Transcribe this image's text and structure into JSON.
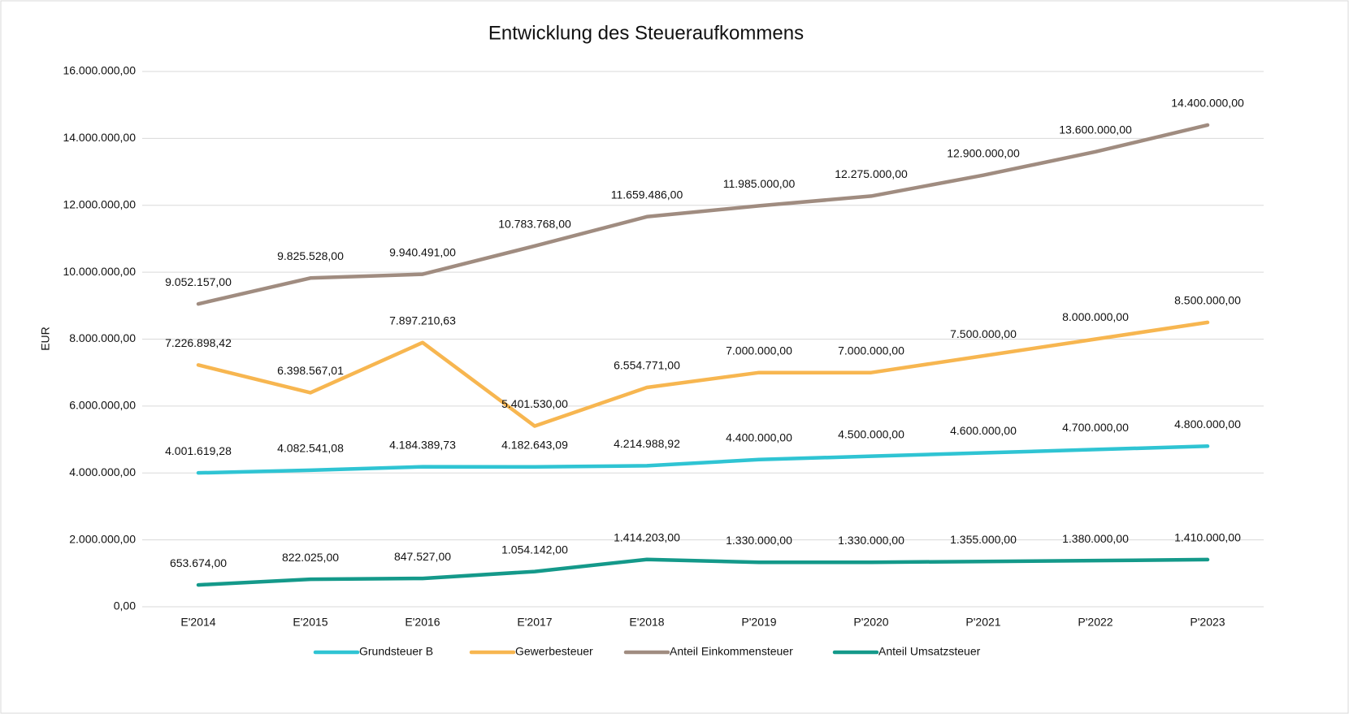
{
  "chart_data": {
    "type": "line",
    "title": "Entwicklung des Steueraufkommens",
    "ylabel": "EUR",
    "categories": [
      "E'2014",
      "E'2015",
      "E'2016",
      "E'2017",
      "E'2018",
      "P'2019",
      "P'2020",
      "P'2021",
      "P'2022",
      "P'2023"
    ],
    "ylim": [
      0,
      16000000
    ],
    "yticks": [
      {
        "value": 0,
        "label": "0,00"
      },
      {
        "value": 2000000,
        "label": "2.000.000,00"
      },
      {
        "value": 4000000,
        "label": "4.000.000,00"
      },
      {
        "value": 6000000,
        "label": "6.000.000,00"
      },
      {
        "value": 8000000,
        "label": "8.000.000,00"
      },
      {
        "value": 10000000,
        "label": "10.000.000,00"
      },
      {
        "value": 12000000,
        "label": "12.000.000,00"
      },
      {
        "value": 14000000,
        "label": "14.000.000,00"
      },
      {
        "value": 16000000,
        "label": "16.000.000,00"
      }
    ],
    "grid": true,
    "legend": "bottom",
    "series": [
      {
        "name": "Grundsteuer B",
        "color": "#2fc4d3",
        "values": [
          4001619.28,
          4082541.08,
          4184389.73,
          4182643.09,
          4214988.92,
          4400000,
          4500000,
          4600000,
          4700000,
          4800000
        ],
        "value_labels": [
          "4.001.619,28",
          "4.082.541,08",
          "4.184.389,73",
          "4.182.643,09",
          "4.214.988,92",
          "4.400.000,00",
          "4.500.000,00",
          "4.600.000,00",
          "4.700.000,00",
          "4.800.000,00"
        ]
      },
      {
        "name": "Gewerbesteuer",
        "color": "#f7b650",
        "values": [
          7226898.42,
          6398567.01,
          7897210.63,
          5401530,
          6554771,
          7000000,
          7000000,
          7500000,
          8000000,
          8500000
        ],
        "value_labels": [
          "7.226.898,42",
          "6.398.567,01",
          "7.897.210,63",
          "5.401.530,00",
          "6.554.771,00",
          "7.000.000,00",
          "7.000.000,00",
          "7.500.000,00",
          "8.000.000,00",
          "8.500.000,00"
        ]
      },
      {
        "name": "Anteil Einkommensteuer",
        "color": "#a08c80",
        "values": [
          9052157,
          9825528,
          9940491,
          10783768,
          11659486,
          11985000,
          12275000,
          12900000,
          13600000,
          14400000
        ],
        "value_labels": [
          "9.052.157,00",
          "9.825.528,00",
          "9.940.491,00",
          "10.783.768,00",
          "11.659.486,00",
          "11.985.000,00",
          "12.275.000,00",
          "12.900.000,00",
          "13.600.000,00",
          "14.400.000,00"
        ]
      },
      {
        "name": "Anteil Umsatzsteuer",
        "color": "#14998a",
        "values": [
          653674,
          822025,
          847527,
          1054142,
          1414203,
          1330000,
          1330000,
          1355000,
          1380000,
          1410000
        ],
        "value_labels": [
          "653.674,00",
          "822.025,00",
          "847.527,00",
          "1.054.142,00",
          "1.414.203,00",
          "1.330.000,00",
          "1.330.000,00",
          "1.355.000,00",
          "1.380.000,00",
          "1.410.000,00"
        ]
      }
    ]
  }
}
